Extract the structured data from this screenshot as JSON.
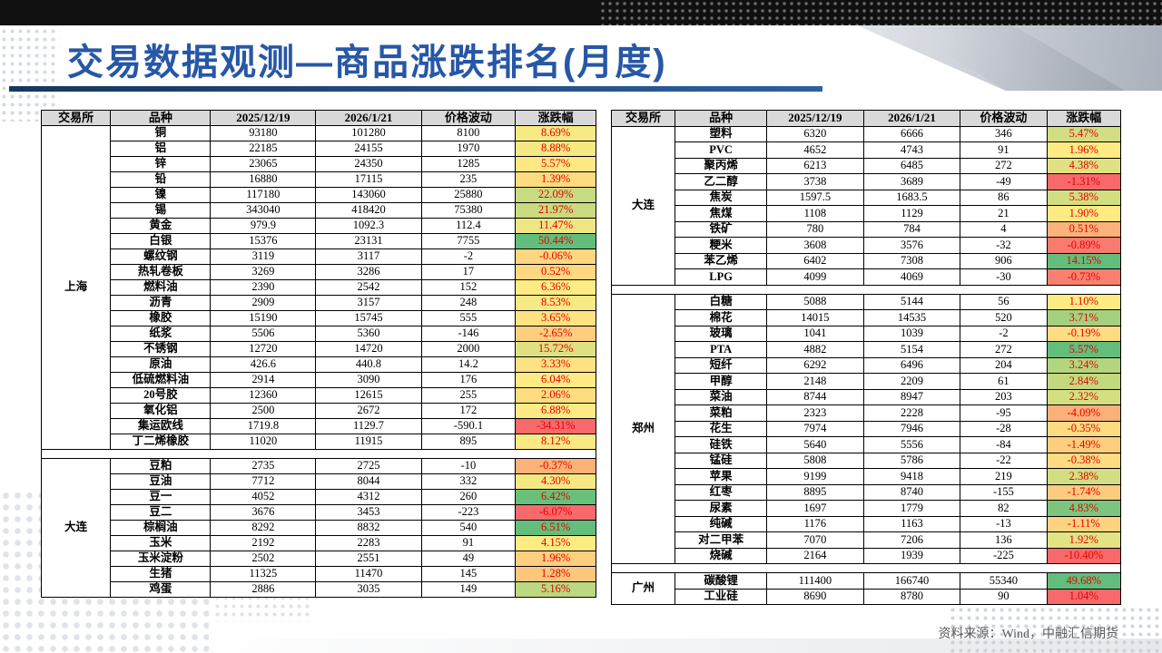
{
  "page": {
    "title": "交易数据观测—商品涨跌排名(月度)",
    "source": "资料来源：Wind，中融汇信期货"
  },
  "colors": {
    "title": "#2757a6",
    "accent_line": "#16375e",
    "header_bg": "#d9d9d9",
    "pct_text": "#e60000",
    "scale_low": "#f8696b",
    "scale_mid": "#ffeb84",
    "scale_high": "#63be7b"
  },
  "columns": [
    "交易所",
    "品种",
    "2025/12/19",
    "2026/1/21",
    "价格波动",
    "涨跌幅"
  ],
  "tables": [
    {
      "name": "left",
      "sections": [
        {
          "exchange": "上海",
          "rows": [
            [
              "铜",
              "93180",
              "101280",
              "8100",
              "8.69%"
            ],
            [
              "铝",
              "22185",
              "24155",
              "1970",
              "8.88%"
            ],
            [
              "锌",
              "23065",
              "24350",
              "1285",
              "5.57%"
            ],
            [
              "铅",
              "16880",
              "17115",
              "235",
              "1.39%"
            ],
            [
              "镍",
              "117180",
              "143060",
              "25880",
              "22.09%"
            ],
            [
              "锡",
              "343040",
              "418420",
              "75380",
              "21.97%"
            ],
            [
              "黄金",
              "979.9",
              "1092.3",
              "112.4",
              "11.47%"
            ],
            [
              "白银",
              "15376",
              "23131",
              "7755",
              "50.44%"
            ],
            [
              "螺纹钢",
              "3119",
              "3117",
              "-2",
              "-0.06%"
            ],
            [
              "热轧卷板",
              "3269",
              "3286",
              "17",
              "0.52%"
            ],
            [
              "燃料油",
              "2390",
              "2542",
              "152",
              "6.36%"
            ],
            [
              "沥青",
              "2909",
              "3157",
              "248",
              "8.53%"
            ],
            [
              "橡胶",
              "15190",
              "15745",
              "555",
              "3.65%"
            ],
            [
              "纸浆",
              "5506",
              "5360",
              "-146",
              "-2.65%"
            ],
            [
              "不锈钢",
              "12720",
              "14720",
              "2000",
              "15.72%"
            ],
            [
              "原油",
              "426.6",
              "440.8",
              "14.2",
              "3.33%"
            ],
            [
              "低硫燃料油",
              "2914",
              "3090",
              "176",
              "6.04%"
            ],
            [
              "20号胶",
              "12360",
              "12615",
              "255",
              "2.06%"
            ],
            [
              "氧化铝",
              "2500",
              "2672",
              "172",
              "6.88%"
            ],
            [
              "集运欧线",
              "1719.8",
              "1129.7",
              "-590.1",
              "-34.31%"
            ],
            [
              "丁二烯橡胶",
              "11020",
              "11915",
              "895",
              "8.12%"
            ]
          ]
        },
        {
          "exchange": "大连",
          "rows": [
            [
              "豆粕",
              "2735",
              "2725",
              "-10",
              "-0.37%"
            ],
            [
              "豆油",
              "7712",
              "8044",
              "332",
              "4.30%"
            ],
            [
              "豆一",
              "4052",
              "4312",
              "260",
              "6.42%"
            ],
            [
              "豆二",
              "3676",
              "3453",
              "-223",
              "-6.07%"
            ],
            [
              "棕榈油",
              "8292",
              "8832",
              "540",
              "6.51%"
            ],
            [
              "玉米",
              "2192",
              "2283",
              "91",
              "4.15%"
            ],
            [
              "玉米淀粉",
              "2502",
              "2551",
              "49",
              "1.96%"
            ],
            [
              "生猪",
              "11325",
              "11470",
              "145",
              "1.28%"
            ],
            [
              "鸡蛋",
              "2886",
              "3035",
              "149",
              "5.16%"
            ]
          ]
        }
      ]
    },
    {
      "name": "right",
      "sections": [
        {
          "exchange": "大连",
          "rows": [
            [
              "塑料",
              "6320",
              "6666",
              "346",
              "5.47%"
            ],
            [
              "PVC",
              "4652",
              "4743",
              "91",
              "1.96%"
            ],
            [
              "聚丙烯",
              "6213",
              "6485",
              "272",
              "4.38%"
            ],
            [
              "乙二醇",
              "3738",
              "3689",
              "-49",
              "-1.31%"
            ],
            [
              "焦炭",
              "1597.5",
              "1683.5",
              "86",
              "5.38%"
            ],
            [
              "焦煤",
              "1108",
              "1129",
              "21",
              "1.90%"
            ],
            [
              "铁矿",
              "780",
              "784",
              "4",
              "0.51%"
            ],
            [
              "粳米",
              "3608",
              "3576",
              "-32",
              "-0.89%"
            ],
            [
              "苯乙烯",
              "6402",
              "7308",
              "906",
              "14.15%"
            ],
            [
              "LPG",
              "4099",
              "4069",
              "-30",
              "-0.73%"
            ]
          ]
        },
        {
          "exchange": "郑州",
          "rows": [
            [
              "白糖",
              "5088",
              "5144",
              "56",
              "1.10%"
            ],
            [
              "棉花",
              "14015",
              "14535",
              "520",
              "3.71%"
            ],
            [
              "玻璃",
              "1041",
              "1039",
              "-2",
              "-0.19%"
            ],
            [
              "PTA",
              "4882",
              "5154",
              "272",
              "5.57%"
            ],
            [
              "短纤",
              "6292",
              "6496",
              "204",
              "3.24%"
            ],
            [
              "甲醇",
              "2148",
              "2209",
              "61",
              "2.84%"
            ],
            [
              "菜油",
              "8744",
              "8947",
              "203",
              "2.32%"
            ],
            [
              "菜粕",
              "2323",
              "2228",
              "-95",
              "-4.09%"
            ],
            [
              "花生",
              "7974",
              "7946",
              "-28",
              "-0.35%"
            ],
            [
              "硅铁",
              "5640",
              "5556",
              "-84",
              "-1.49%"
            ],
            [
              "锰硅",
              "5808",
              "5786",
              "-22",
              "-0.38%"
            ],
            [
              "苹果",
              "9199",
              "9418",
              "219",
              "2.38%"
            ],
            [
              "红枣",
              "8895",
              "8740",
              "-155",
              "-1.74%"
            ],
            [
              "尿素",
              "1697",
              "1779",
              "82",
              "4.83%"
            ],
            [
              "纯碱",
              "1176",
              "1163",
              "-13",
              "-1.11%"
            ],
            [
              "对二甲苯",
              "7070",
              "7206",
              "136",
              "1.92%"
            ],
            [
              "烧碱",
              "2164",
              "1939",
              "-225",
              "-10.40%"
            ]
          ]
        },
        {
          "exchange": "广州",
          "rows": [
            [
              "碳酸锂",
              "111400",
              "166740",
              "55340",
              "49.68%"
            ],
            [
              "工业硅",
              "8690",
              "8780",
              "90",
              "1.04%"
            ]
          ]
        }
      ]
    }
  ]
}
